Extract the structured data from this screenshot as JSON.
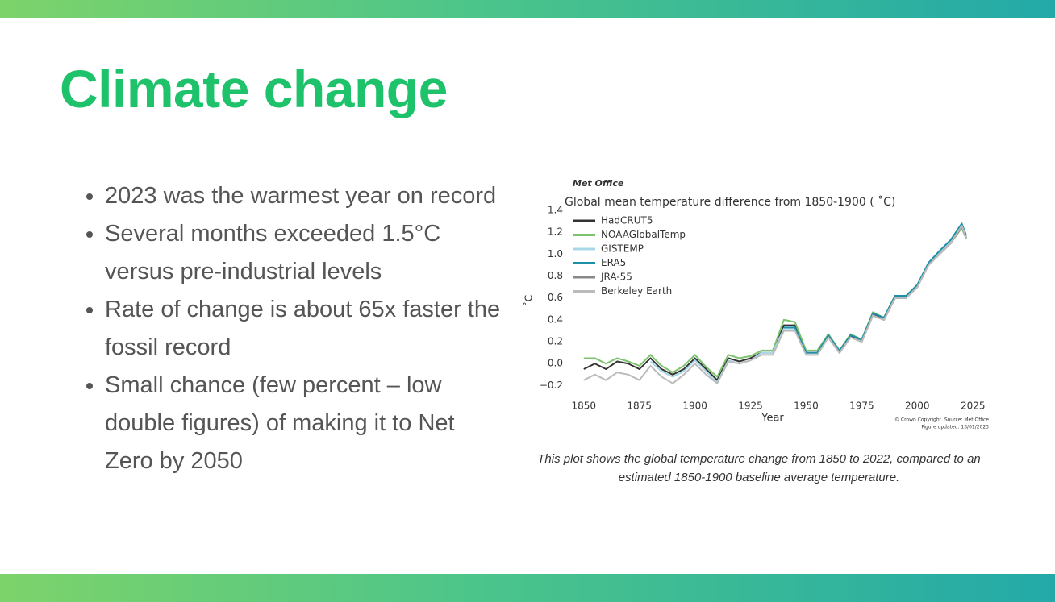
{
  "slide": {
    "title": "Climate change",
    "bullets": [
      "2023 was the warmest year on record",
      "Several months exceeded 1.5°C versus pre-industrial levels",
      "Rate of change is about 65x faster the fossil record",
      "Small chance (few percent – low double figures) of making it to Net Zero by 2050"
    ],
    "caption": "This plot shows the global temperature change from 1850 to 2022, compared to an estimated 1850-1900 baseline average temperature."
  },
  "chart_data": {
    "type": "line",
    "brand": "Met Office",
    "title": "Global mean temperature difference from 1850-1900 ( ˚C)",
    "x_label": "Year",
    "y_label": "˚C",
    "credit": "© Crown Copyright. Source: Met Office",
    "updated": "Figure updated: 13/01/2023",
    "x": [
      1850,
      1855,
      1860,
      1865,
      1870,
      1875,
      1880,
      1885,
      1890,
      1895,
      1900,
      1905,
      1910,
      1915,
      1920,
      1925,
      1930,
      1935,
      1940,
      1945,
      1950,
      1955,
      1960,
      1965,
      1970,
      1975,
      1980,
      1985,
      1990,
      1995,
      2000,
      2005,
      2010,
      2015,
      2020,
      2022
    ],
    "xlim": [
      1845,
      2030
    ],
    "xticks": [
      1850,
      1875,
      1900,
      1925,
      1950,
      1975,
      2000,
      2025
    ],
    "ylim": [
      -0.3,
      1.4
    ],
    "yticks": [
      {
        "value": -0.2,
        "label": "−0.2"
      },
      {
        "value": 0,
        "label": "0.0"
      },
      0.2,
      0.4,
      0.6,
      0.8,
      {
        "value": 1,
        "label": "1.0"
      },
      1.2,
      1.4
    ],
    "legend": "upper left",
    "series": [
      {
        "name": "HadCRUT5",
        "color": "#333333",
        "values": [
          -0.05,
          0.0,
          -0.05,
          0.02,
          0.0,
          -0.05,
          0.05,
          -0.05,
          -0.1,
          -0.05,
          0.05,
          -0.05,
          -0.15,
          0.05,
          0.02,
          0.05,
          0.1,
          0.1,
          0.35,
          0.35,
          0.1,
          0.1,
          0.25,
          0.1,
          0.25,
          0.2,
          0.45,
          0.4,
          0.6,
          0.6,
          0.7,
          0.9,
          1.0,
          1.1,
          1.25,
          1.15
        ]
      },
      {
        "name": "NOAAGlobalTemp",
        "color": "#7cc36e",
        "values": [
          0.05,
          0.05,
          0.0,
          0.05,
          0.02,
          -0.02,
          0.08,
          -0.02,
          -0.08,
          -0.02,
          0.08,
          -0.03,
          -0.12,
          0.08,
          0.05,
          0.07,
          0.12,
          0.12,
          0.4,
          0.38,
          0.12,
          0.12,
          0.27,
          0.12,
          0.27,
          0.22,
          0.47,
          0.42,
          0.62,
          0.62,
          0.72,
          0.9,
          1.0,
          1.1,
          1.24,
          1.14
        ]
      },
      {
        "name": "GISTEMP",
        "color": "#a8d8e8",
        "values": [
          null,
          null,
          null,
          null,
          null,
          null,
          0.02,
          -0.07,
          -0.12,
          -0.07,
          0.03,
          -0.07,
          -0.17,
          0.03,
          0.0,
          0.03,
          0.1,
          0.1,
          0.32,
          0.32,
          0.08,
          0.08,
          0.24,
          0.1,
          0.24,
          0.2,
          0.44,
          0.4,
          0.6,
          0.6,
          0.7,
          0.9,
          1.02,
          1.12,
          1.27,
          1.16
        ]
      },
      {
        "name": "ERA5",
        "color": "#1f8fa8",
        "values": [
          null,
          null,
          null,
          null,
          null,
          null,
          null,
          null,
          null,
          null,
          null,
          null,
          null,
          null,
          null,
          null,
          null,
          null,
          0.33,
          0.33,
          0.1,
          0.1,
          0.26,
          0.12,
          0.26,
          0.22,
          0.46,
          0.42,
          0.62,
          0.62,
          0.72,
          0.92,
          1.03,
          1.13,
          1.28,
          1.17
        ]
      },
      {
        "name": "JRA-55",
        "color": "#888888",
        "values": [
          null,
          null,
          null,
          null,
          null,
          null,
          null,
          null,
          null,
          null,
          null,
          null,
          null,
          null,
          null,
          null,
          null,
          null,
          null,
          null,
          null,
          null,
          0.24,
          0.1,
          0.24,
          0.2,
          0.44,
          0.4,
          0.6,
          0.6,
          0.7,
          0.9,
          1.0,
          1.1,
          1.25,
          1.15
        ]
      },
      {
        "name": "Berkeley Earth",
        "color": "#bbbbbb",
        "values": [
          -0.15,
          -0.1,
          -0.15,
          -0.08,
          -0.1,
          -0.15,
          -0.02,
          -0.12,
          -0.18,
          -0.1,
          0.0,
          -0.1,
          -0.18,
          0.02,
          0.0,
          0.03,
          0.08,
          0.08,
          0.3,
          0.3,
          0.08,
          0.08,
          0.24,
          0.1,
          0.24,
          0.2,
          0.44,
          0.4,
          0.6,
          0.6,
          0.7,
          0.9,
          1.0,
          1.1,
          1.26,
          1.15
        ]
      }
    ]
  }
}
